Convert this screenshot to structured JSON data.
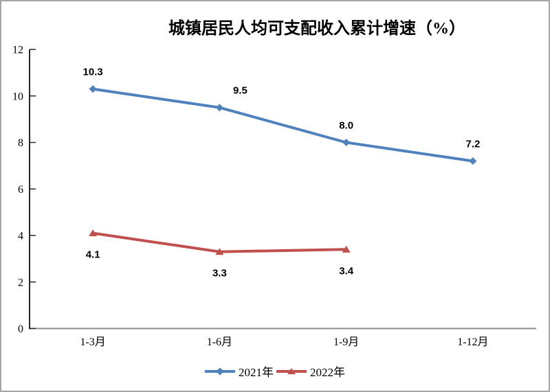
{
  "window": {
    "background": "#ffffff",
    "frame_border_color": "#a6a6a6"
  },
  "chart_data": {
    "type": "line",
    "title": "城镇居民人均可支配收入累计增速（%）",
    "categories": [
      "1-3月",
      "1-6月",
      "1-9月",
      "1-12月"
    ],
    "series": [
      {
        "name": "2021年",
        "color": "#4F81BD",
        "marker": "diamond",
        "values": [
          10.3,
          9.5,
          8.0,
          7.2
        ],
        "labels": [
          "10.3",
          "9.5",
          "8.0",
          "7.2"
        ],
        "label_position": "above"
      },
      {
        "name": "2022年",
        "color": "#C0504D",
        "marker": "triangle",
        "values": [
          4.1,
          3.3,
          3.4
        ],
        "labels": [
          "4.1",
          "3.3",
          "3.4"
        ],
        "label_position": "below"
      }
    ],
    "xlabel": "",
    "ylabel": "",
    "ylim": [
      0,
      12
    ],
    "yticks": [
      0,
      2,
      4,
      6,
      8,
      10,
      12
    ],
    "grid": false,
    "legend_position": "bottom",
    "axis_colors": {
      "y_axis": "#262626",
      "x_axis": "#8C8C8C"
    }
  }
}
